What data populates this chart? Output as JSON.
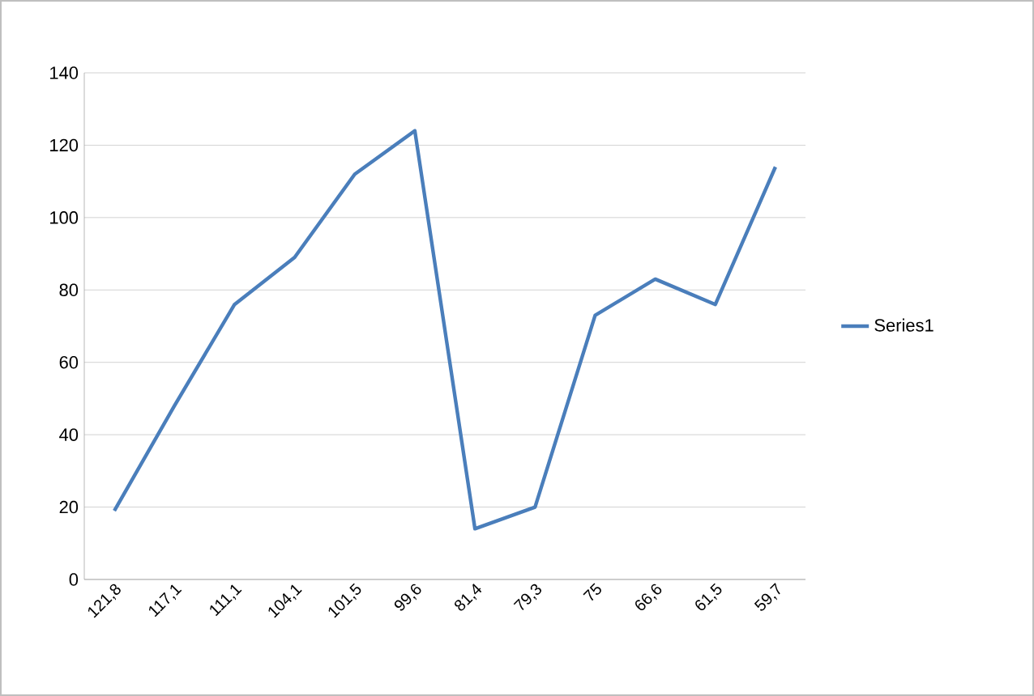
{
  "chart_data": {
    "type": "line",
    "categories": [
      "121,8",
      "117,1",
      "111,1",
      "104,1",
      "101,5",
      "99,6",
      "81,4",
      "79,3",
      "75",
      "66,6",
      "61,5",
      "59,7"
    ],
    "series": [
      {
        "name": "Series1",
        "color": "#4a7ebb",
        "values": [
          19,
          48,
          76,
          89,
          112,
          124,
          14,
          20,
          73,
          83,
          76,
          114
        ]
      }
    ],
    "ylim": [
      0,
      140
    ],
    "yticks": [
      0,
      20,
      40,
      60,
      80,
      100,
      120,
      140
    ],
    "grid": "y",
    "legend": "right",
    "marker": "none",
    "line_style": "solid"
  }
}
